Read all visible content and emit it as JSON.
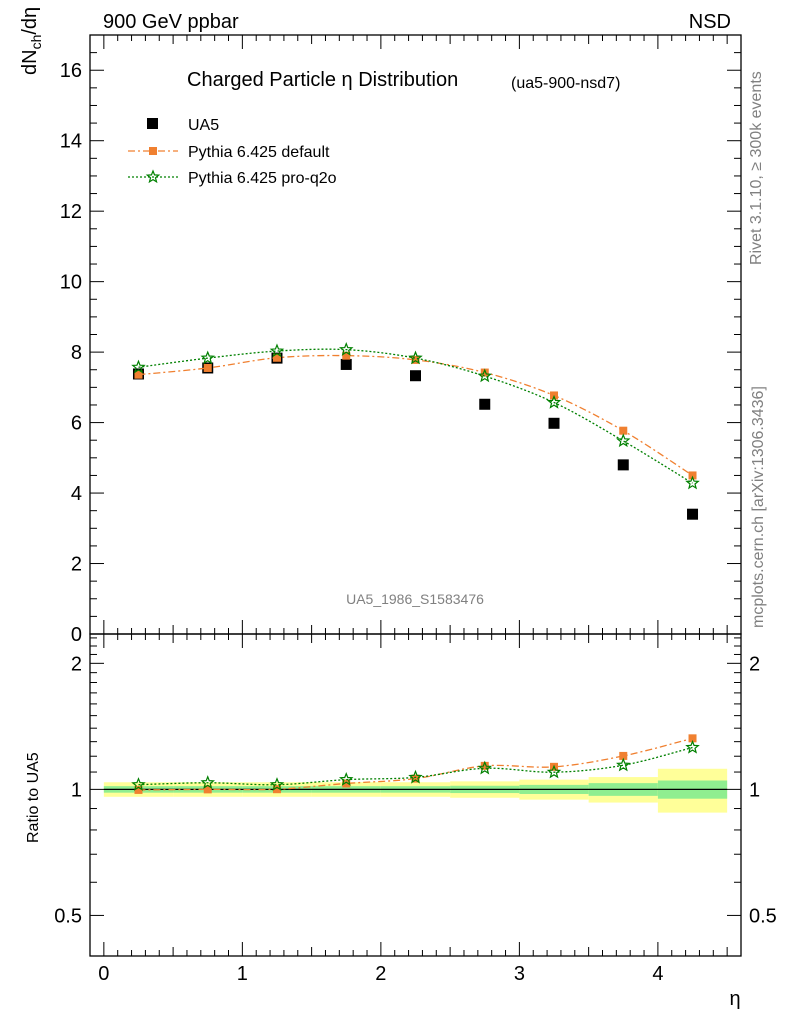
{
  "header": {
    "left": "900 GeV ppbar",
    "right": "NSD"
  },
  "side_labels": {
    "rivet": "Rivet 3.1.10, ≥ 300k events",
    "mcplots": "mcplots.cern.ch [arXiv:1306.3436]"
  },
  "chart_data": [
    {
      "type": "scatter",
      "panel": "main",
      "title": "Charged Particle η Distribution",
      "title_suffix": "(ua5-900-nsd7)",
      "watermark": "UA5_1986_S1583476",
      "ylabel": "dNch/dη",
      "ylim": [
        0,
        17
      ],
      "xlim": [
        -0.1,
        4.6
      ],
      "yticks": [
        0,
        2,
        4,
        6,
        8,
        10,
        12,
        14,
        16
      ],
      "grid": false,
      "legend_position": "top-left",
      "x": [
        0.25,
        0.75,
        1.25,
        1.75,
        2.25,
        2.75,
        3.25,
        3.75,
        4.25
      ],
      "series": [
        {
          "name": "UA5",
          "color": "#000000",
          "marker": "square",
          "values": [
            7.38,
            7.55,
            7.83,
            7.65,
            7.33,
            6.52,
            5.98,
            4.8,
            3.4
          ]
        },
        {
          "name": "Pythia 6.425 default",
          "color": "#f08030",
          "marker": "square",
          "line": "dash-dot",
          "values": [
            7.36,
            7.55,
            7.84,
            7.9,
            7.78,
            7.42,
            6.77,
            5.77,
            4.5
          ]
        },
        {
          "name": "Pythia 6.425 pro-q2o",
          "color": "#008000",
          "marker": "star",
          "line": "dotted",
          "values": [
            7.57,
            7.83,
            8.03,
            8.07,
            7.83,
            7.32,
            6.57,
            5.48,
            4.28
          ]
        }
      ]
    },
    {
      "type": "line",
      "panel": "ratio",
      "ylabel": "Ratio to UA5",
      "xlabel": "η",
      "ylim": [
        0.4,
        2.35
      ],
      "log_y": true,
      "xlim": [
        -0.1,
        4.6
      ],
      "xticks": [
        0,
        1,
        2,
        3,
        4
      ],
      "yticks": [
        0.5,
        1,
        2
      ],
      "x": [
        0.25,
        0.75,
        1.25,
        1.75,
        2.25,
        2.75,
        3.25,
        3.75,
        4.25
      ],
      "bands": {
        "bin_edges": [
          0,
          0.5,
          1,
          1.5,
          2,
          2.5,
          3,
          3.5,
          4,
          4.5
        ],
        "stat_green": [
          0.018,
          0.018,
          0.018,
          0.018,
          0.018,
          0.02,
          0.025,
          0.035,
          0.05
        ],
        "total_yellow": [
          0.04,
          0.04,
          0.04,
          0.04,
          0.04,
          0.045,
          0.055,
          0.07,
          0.12
        ],
        "green_color": "#90ee90",
        "yellow_color": "#ffff99"
      },
      "series": [
        {
          "name": "Pythia 6.425 default",
          "color": "#f08030",
          "marker": "square",
          "line": "dash-dot",
          "values": [
            0.997,
            1.0,
            1.001,
            1.033,
            1.061,
            1.138,
            1.132,
            1.202,
            1.324
          ]
        },
        {
          "name": "Pythia 6.425 pro-q2o",
          "color": "#008000",
          "marker": "star",
          "line": "dotted",
          "values": [
            1.026,
            1.037,
            1.026,
            1.055,
            1.068,
            1.123,
            1.099,
            1.142,
            1.259
          ]
        }
      ]
    }
  ]
}
